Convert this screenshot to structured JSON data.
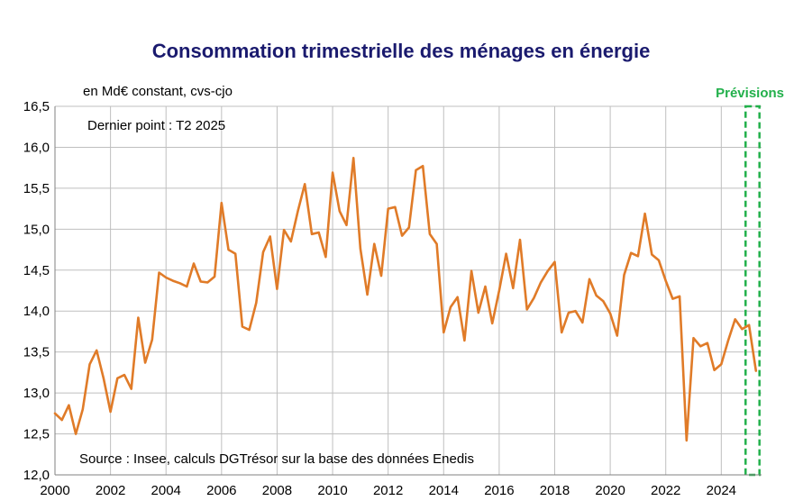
{
  "chart_data": {
    "type": "line",
    "title": "Consommation trimestrielle des ménages en énergie",
    "ylabel": "en Md€ constant, cvs-cjo",
    "annotation_last_point": "Dernier point : T2 2025",
    "source": "Source : Insee, calculs DGTrésor sur la base des données Enedis",
    "forecast_label": "Prévisions",
    "forecast_range": [
      2024.875,
      2025.375
    ],
    "xlim": [
      2000,
      2025.45
    ],
    "ylim": [
      12.0,
      16.5
    ],
    "x_ticks": [
      2000,
      2002,
      2004,
      2006,
      2008,
      2010,
      2012,
      2014,
      2016,
      2018,
      2020,
      2022,
      2024
    ],
    "y_ticks": [
      "12,0",
      "12,5",
      "13,0",
      "13,5",
      "14,0",
      "14,5",
      "15,0",
      "15,5",
      "16,0",
      "16,5"
    ],
    "x_tick_labels": [
      "2000",
      "2002",
      "2004",
      "2006",
      "2008",
      "2010",
      "2012",
      "2014",
      "2016",
      "2018",
      "2020",
      "2022",
      "2024"
    ],
    "colors": {
      "series": "#e07b28",
      "grid": "#bfbfbf",
      "forecast": "#22b04b",
      "title": "#1a1a6e"
    },
    "series": [
      {
        "name": "Consommation trimestrielle",
        "start": 2000.0,
        "step": 0.25,
        "values": [
          12.75,
          12.67,
          12.85,
          12.5,
          12.8,
          13.35,
          13.52,
          13.18,
          12.77,
          13.18,
          13.22,
          13.05,
          13.92,
          13.37,
          13.65,
          14.47,
          14.41,
          14.37,
          14.34,
          14.3,
          14.58,
          14.36,
          14.35,
          14.42,
          15.32,
          14.75,
          14.7,
          13.81,
          13.77,
          14.1,
          14.72,
          14.91,
          14.27,
          14.99,
          14.85,
          15.22,
          15.55,
          14.94,
          14.96,
          14.66,
          15.69,
          15.22,
          15.05,
          15.87,
          14.76,
          14.2,
          14.82,
          14.43,
          15.25,
          15.27,
          14.92,
          15.02,
          15.72,
          15.77,
          14.94,
          14.82,
          13.74,
          14.05,
          14.17,
          13.64,
          14.49,
          13.98,
          14.3,
          13.85,
          14.25,
          14.7,
          14.28,
          14.87,
          14.02,
          14.16,
          14.35,
          14.49,
          14.6,
          13.74,
          13.98,
          14.0,
          13.86,
          14.39,
          14.19,
          14.12,
          13.97,
          13.7,
          14.44,
          14.71,
          14.67,
          15.19,
          14.69,
          14.62,
          14.37,
          14.15,
          14.18,
          12.42,
          13.67,
          13.57,
          13.61,
          13.28,
          13.35,
          13.64,
          13.9,
          13.78,
          13.83,
          13.27
        ]
      }
    ]
  }
}
